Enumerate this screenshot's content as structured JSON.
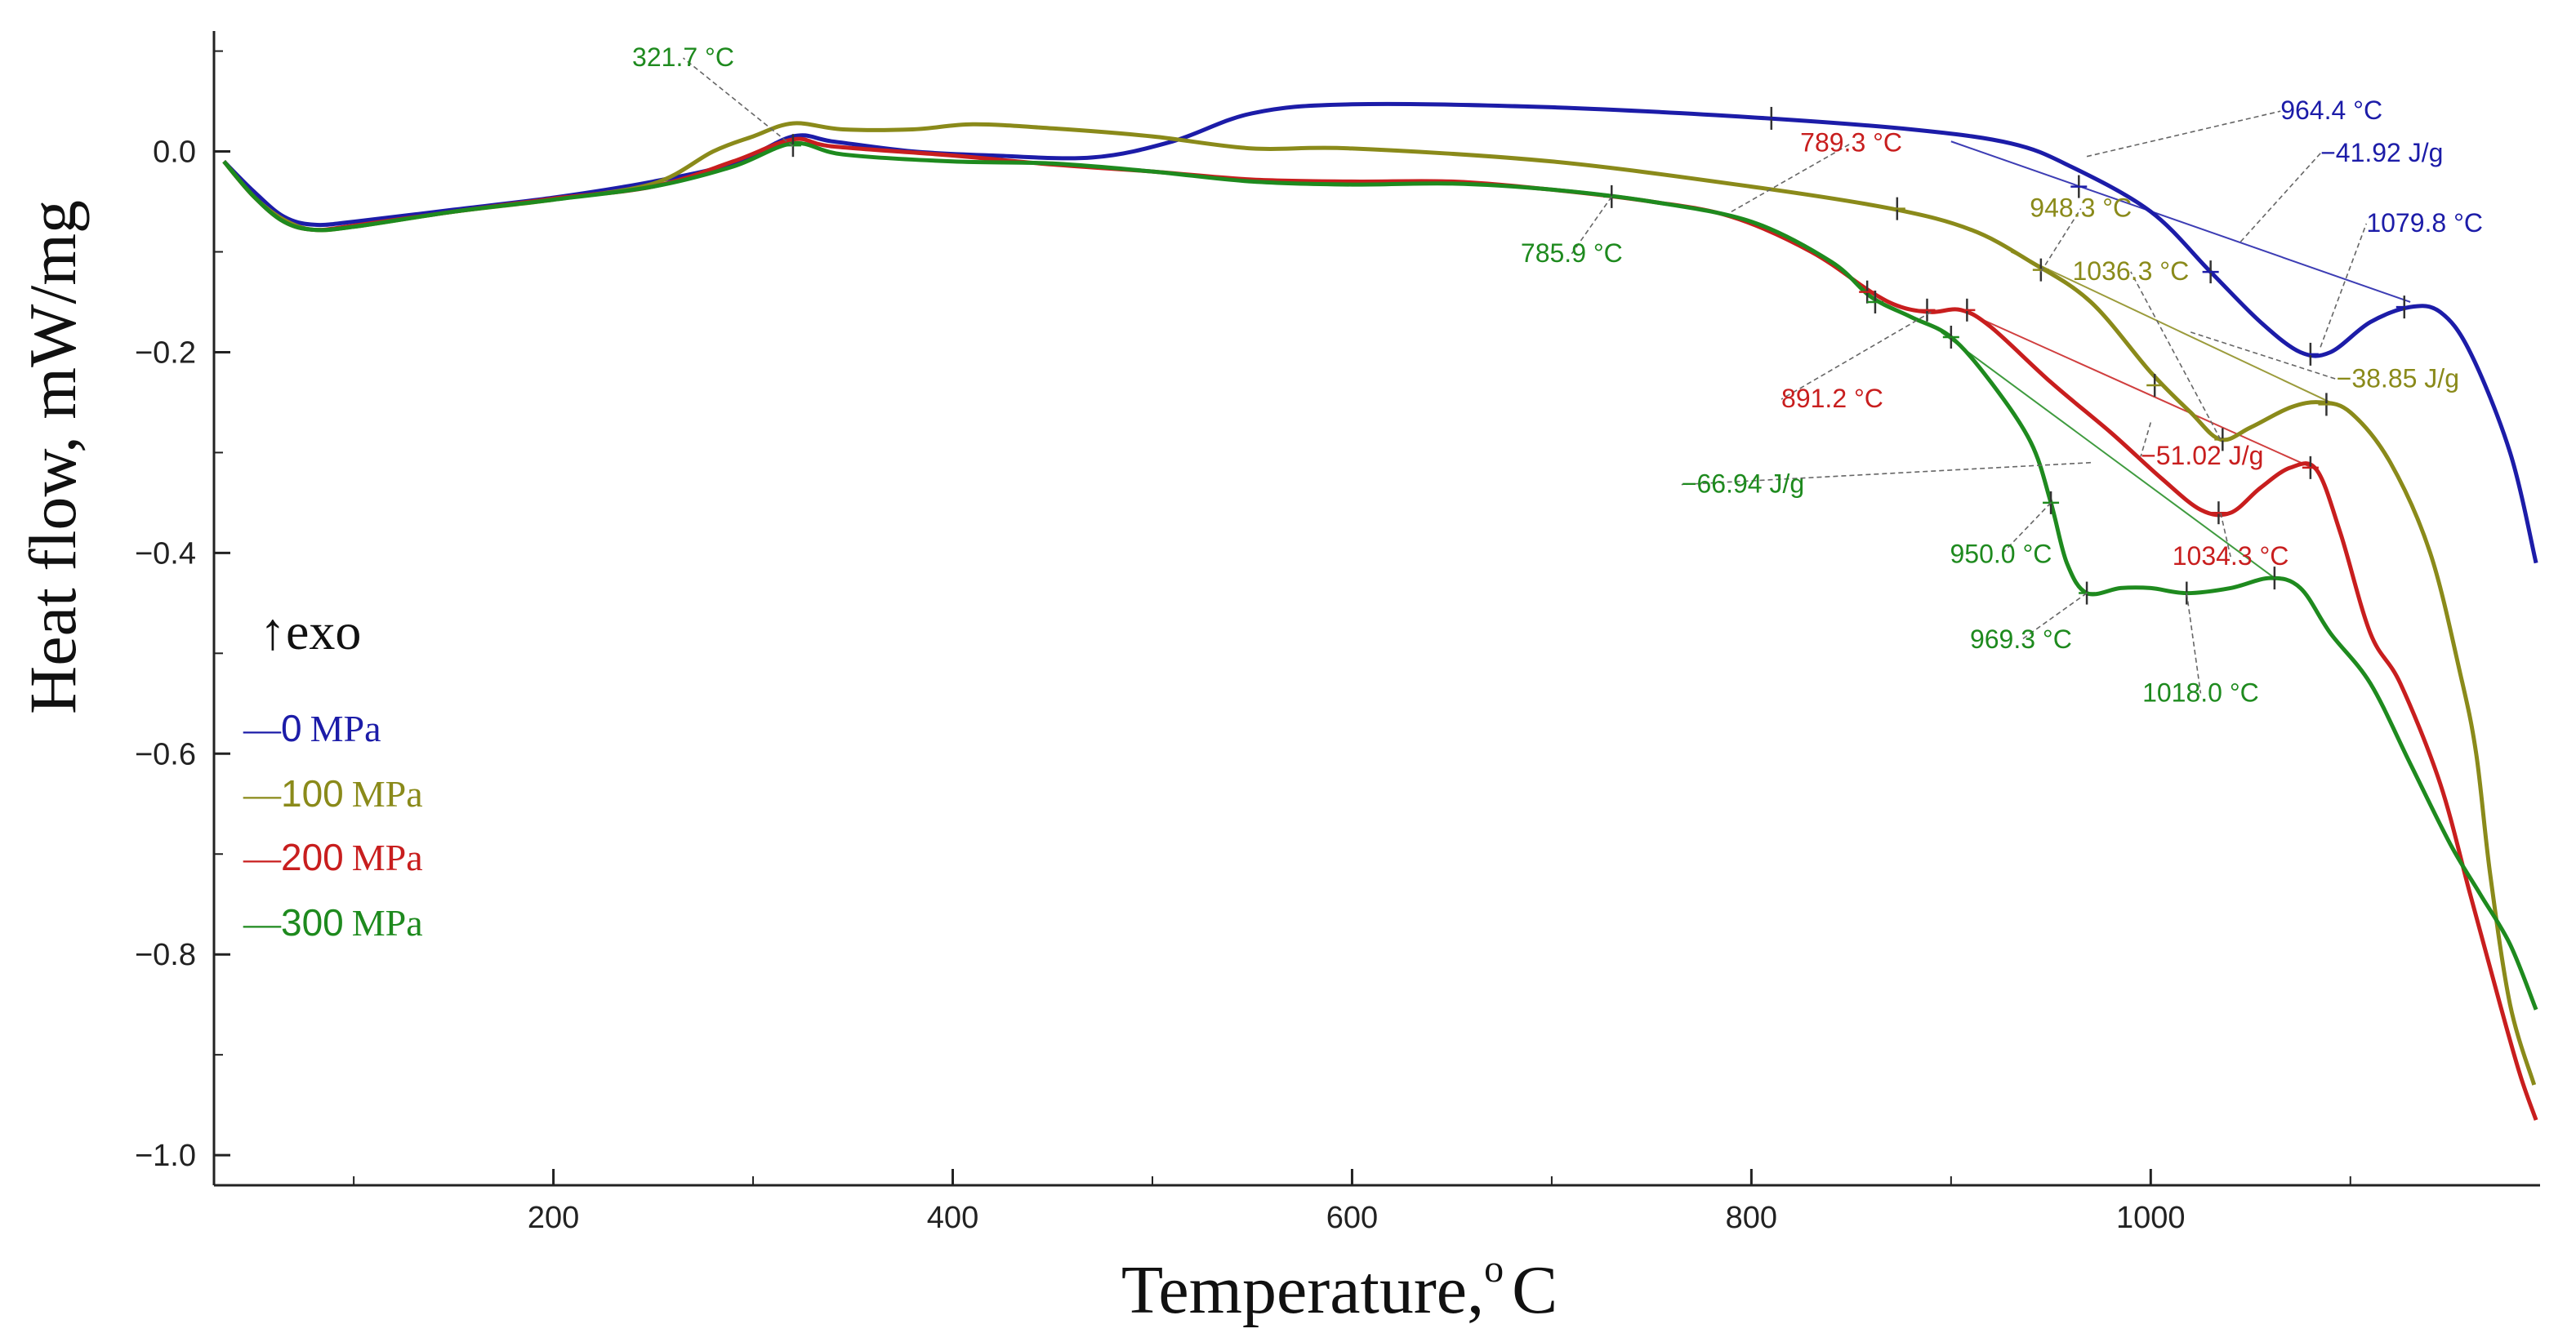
{
  "chart_data": {
    "type": "line",
    "title": "",
    "xlabel": "Temperature,",
    "xlabel_degree": "o",
    "xlabel_unit": "C",
    "ylabel": "Heat flow, mW/mg",
    "xlim": [
      30,
      1195
    ],
    "ylim": [
      -1.03,
      0.12
    ],
    "x_ticks": [
      200,
      400,
      600,
      800,
      1000
    ],
    "x_tick_labels": [
      "200",
      "400",
      "600",
      "800",
      "1000"
    ],
    "y_ticks": [
      0.0,
      -0.2,
      -0.4,
      -0.6,
      -0.8,
      -1.0
    ],
    "y_tick_labels": [
      "0.0",
      "−0.2",
      "−0.4",
      "−0.6",
      "−0.8",
      "−1.0"
    ],
    "exo_label": "↑exo",
    "legend": [
      {
        "name": "0 MPa",
        "dash": "—",
        "num": "0",
        "unit": "MPa",
        "color": "#1c1ca8"
      },
      {
        "name": "100 MPa",
        "dash": "—",
        "num": "100",
        "unit": "MPa",
        "color": "#8a8a1a"
      },
      {
        "name": "200 MPa",
        "dash": "—",
        "num": "200",
        "unit": "MPa",
        "color": "#c81e1e"
      },
      {
        "name": "300 MPa",
        "dash": "—",
        "num": "300",
        "unit": "MPa",
        "color": "#1e8a1e"
      }
    ],
    "series": [
      {
        "name": "0 MPa",
        "color": "#1c1ca8",
        "points": [
          [
            35,
            -0.01
          ],
          [
            50,
            -0.04
          ],
          [
            65,
            -0.065
          ],
          [
            80,
            -0.073
          ],
          [
            100,
            -0.07
          ],
          [
            150,
            -0.058
          ],
          [
            200,
            -0.046
          ],
          [
            250,
            -0.03
          ],
          [
            290,
            -0.012
          ],
          [
            320,
            0.015
          ],
          [
            340,
            0.01
          ],
          [
            380,
            0.0
          ],
          [
            420,
            -0.004
          ],
          [
            470,
            -0.006
          ],
          [
            510,
            0.01
          ],
          [
            550,
            0.038
          ],
          [
            600,
            0.047
          ],
          [
            700,
            0.044
          ],
          [
            800,
            0.034
          ],
          [
            880,
            0.022
          ],
          [
            930,
            0.008
          ],
          [
            960,
            -0.015
          ],
          [
            1000,
            -0.06
          ],
          [
            1030,
            -0.12
          ],
          [
            1055,
            -0.17
          ],
          [
            1075,
            -0.2
          ],
          [
            1090,
            -0.2
          ],
          [
            1110,
            -0.17
          ],
          [
            1130,
            -0.155
          ],
          [
            1145,
            -0.16
          ],
          [
            1160,
            -0.2
          ],
          [
            1180,
            -0.3
          ],
          [
            1193,
            -0.41
          ]
        ]
      },
      {
        "name": "100 MPa",
        "color": "#8a8a1a",
        "points": [
          [
            35,
            -0.01
          ],
          [
            50,
            -0.045
          ],
          [
            65,
            -0.068
          ],
          [
            80,
            -0.078
          ],
          [
            100,
            -0.075
          ],
          [
            150,
            -0.06
          ],
          [
            200,
            -0.048
          ],
          [
            250,
            -0.032
          ],
          [
            280,
            0.0
          ],
          [
            300,
            0.015
          ],
          [
            320,
            0.028
          ],
          [
            345,
            0.022
          ],
          [
            380,
            0.022
          ],
          [
            410,
            0.027
          ],
          [
            450,
            0.023
          ],
          [
            500,
            0.015
          ],
          [
            550,
            0.003
          ],
          [
            600,
            0.003
          ],
          [
            700,
            -0.01
          ],
          [
            800,
            -0.035
          ],
          [
            870,
            -0.057
          ],
          [
            910,
            -0.078
          ],
          [
            940,
            -0.11
          ],
          [
            970,
            -0.15
          ],
          [
            1000,
            -0.22
          ],
          [
            1020,
            -0.26
          ],
          [
            1035,
            -0.287
          ],
          [
            1050,
            -0.275
          ],
          [
            1070,
            -0.255
          ],
          [
            1085,
            -0.25
          ],
          [
            1100,
            -0.26
          ],
          [
            1120,
            -0.31
          ],
          [
            1140,
            -0.4
          ],
          [
            1155,
            -0.52
          ],
          [
            1163,
            -0.6
          ],
          [
            1170,
            -0.72
          ],
          [
            1180,
            -0.85
          ],
          [
            1192,
            -0.93
          ]
        ]
      },
      {
        "name": "200 MPa",
        "color": "#c81e1e",
        "points": [
          [
            35,
            -0.01
          ],
          [
            50,
            -0.045
          ],
          [
            65,
            -0.07
          ],
          [
            80,
            -0.078
          ],
          [
            100,
            -0.074
          ],
          [
            150,
            -0.06
          ],
          [
            200,
            -0.047
          ],
          [
            250,
            -0.035
          ],
          [
            290,
            -0.01
          ],
          [
            320,
            0.012
          ],
          [
            340,
            0.005
          ],
          [
            400,
            -0.004
          ],
          [
            450,
            -0.013
          ],
          [
            500,
            -0.02
          ],
          [
            550,
            -0.028
          ],
          [
            600,
            -0.03
          ],
          [
            650,
            -0.03
          ],
          [
            700,
            -0.038
          ],
          [
            750,
            -0.05
          ],
          [
            790,
            -0.065
          ],
          [
            830,
            -0.1
          ],
          [
            860,
            -0.14
          ],
          [
            875,
            -0.155
          ],
          [
            890,
            -0.16
          ],
          [
            905,
            -0.158
          ],
          [
            920,
            -0.175
          ],
          [
            950,
            -0.23
          ],
          [
            980,
            -0.28
          ],
          [
            1005,
            -0.325
          ],
          [
            1025,
            -0.357
          ],
          [
            1040,
            -0.36
          ],
          [
            1055,
            -0.335
          ],
          [
            1070,
            -0.315
          ],
          [
            1083,
            -0.317
          ],
          [
            1095,
            -0.38
          ],
          [
            1110,
            -0.48
          ],
          [
            1125,
            -0.53
          ],
          [
            1145,
            -0.63
          ],
          [
            1160,
            -0.74
          ],
          [
            1175,
            -0.85
          ],
          [
            1185,
            -0.92
          ],
          [
            1193,
            -0.965
          ]
        ]
      },
      {
        "name": "300 MPa",
        "color": "#1e8a1e",
        "points": [
          [
            35,
            -0.01
          ],
          [
            50,
            -0.045
          ],
          [
            65,
            -0.07
          ],
          [
            80,
            -0.078
          ],
          [
            100,
            -0.075
          ],
          [
            150,
            -0.06
          ],
          [
            200,
            -0.048
          ],
          [
            250,
            -0.035
          ],
          [
            290,
            -0.015
          ],
          [
            320,
            0.008
          ],
          [
            345,
            -0.003
          ],
          [
            400,
            -0.01
          ],
          [
            450,
            -0.012
          ],
          [
            500,
            -0.02
          ],
          [
            550,
            -0.03
          ],
          [
            600,
            -0.033
          ],
          [
            650,
            -0.032
          ],
          [
            700,
            -0.038
          ],
          [
            750,
            -0.05
          ],
          [
            800,
            -0.07
          ],
          [
            840,
            -0.11
          ],
          [
            860,
            -0.145
          ],
          [
            880,
            -0.165
          ],
          [
            900,
            -0.185
          ],
          [
            920,
            -0.23
          ],
          [
            940,
            -0.29
          ],
          [
            950,
            -0.35
          ],
          [
            958,
            -0.41
          ],
          [
            968,
            -0.44
          ],
          [
            985,
            -0.435
          ],
          [
            1000,
            -0.435
          ],
          [
            1018,
            -0.44
          ],
          [
            1040,
            -0.435
          ],
          [
            1060,
            -0.425
          ],
          [
            1075,
            -0.435
          ],
          [
            1090,
            -0.48
          ],
          [
            1110,
            -0.53
          ],
          [
            1130,
            -0.61
          ],
          [
            1150,
            -0.69
          ],
          [
            1165,
            -0.74
          ],
          [
            1180,
            -0.79
          ],
          [
            1193,
            -0.855
          ]
        ]
      }
    ],
    "annotations": [
      {
        "text": "321.7 °C",
        "color": "#1e8a1e",
        "at": [
          320,
          0.005
        ],
        "label_at": [
          265,
          0.085
        ],
        "anchor": "middle"
      },
      {
        "text": "964.4 °C",
        "color": "#1c1ca8",
        "at": [
          968,
          -0.005
        ],
        "label_at": [
          1065,
          0.032
        ],
        "anchor": "start"
      },
      {
        "text": "−41.92 J/g",
        "color": "#1c1ca8",
        "at": [
          1045,
          -0.09
        ],
        "label_at": [
          1085,
          -0.01
        ],
        "anchor": "start"
      },
      {
        "text": "1079.8 °C",
        "color": "#1c1ca8",
        "at": [
          1085,
          -0.195
        ],
        "label_at": [
          1108,
          -0.08
        ],
        "anchor": "start"
      },
      {
        "text": "789.3 °C",
        "color": "#c81e1e",
        "at": [
          790,
          -0.06
        ],
        "label_at": [
          850,
          0.0
        ],
        "anchor": "middle"
      },
      {
        "text": "785.9 °C",
        "color": "#1e8a1e",
        "at": [
          730,
          -0.045
        ],
        "label_at": [
          710,
          -0.11
        ],
        "anchor": "middle"
      },
      {
        "text": "948.3 °C",
        "color": "#8a8a1a",
        "at": [
          945,
          -0.12
        ],
        "label_at": [
          965,
          -0.065
        ],
        "anchor": "middle"
      },
      {
        "text": "1036.3 °C",
        "color": "#8a8a1a",
        "at": [
          1035,
          -0.287
        ],
        "label_at": [
          990,
          -0.128
        ],
        "anchor": "middle"
      },
      {
        "text": "−38.85 J/g",
        "color": "#8a8a1a",
        "at": [
          1020,
          -0.18
        ],
        "label_at": [
          1093,
          -0.235
        ],
        "anchor": "start"
      },
      {
        "text": "891.2 °C",
        "color": "#c81e1e",
        "at": [
          890,
          -0.16
        ],
        "label_at": [
          815,
          -0.255
        ],
        "anchor": "start"
      },
      {
        "text": "−51.02 J/g",
        "color": "#c81e1e",
        "at": [
          1000,
          -0.27
        ],
        "label_at": [
          995,
          -0.312
        ],
        "anchor": "start"
      },
      {
        "text": "−66.94 J/g",
        "color": "#1e8a1e",
        "at": [
          970,
          -0.31
        ],
        "label_at": [
          765,
          -0.34
        ],
        "anchor": "start"
      },
      {
        "text": "950.0 °C",
        "color": "#1e8a1e",
        "at": [
          950,
          -0.35
        ],
        "label_at": [
          925,
          -0.41
        ],
        "anchor": "middle"
      },
      {
        "text": "1034.3 °C",
        "color": "#c81e1e",
        "at": [
          1035,
          -0.36
        ],
        "label_at": [
          1040,
          -0.412
        ],
        "anchor": "middle"
      },
      {
        "text": "969.3 °C",
        "color": "#1e8a1e",
        "at": [
          968,
          -0.44
        ],
        "label_at": [
          935,
          -0.495
        ],
        "anchor": "middle"
      },
      {
        "text": "1018.0 °C",
        "color": "#1e8a1e",
        "at": [
          1018,
          -0.44
        ],
        "label_at": [
          1025,
          -0.548
        ],
        "anchor": "middle"
      }
    ],
    "markers": [
      {
        "series": "0 MPa",
        "x": 810,
        "y": 0.033
      },
      {
        "series": "0 MPa",
        "x": 964,
        "y": -0.035
      },
      {
        "series": "0 MPa",
        "x": 1030,
        "y": -0.12
      },
      {
        "series": "0 MPa",
        "x": 1080,
        "y": -0.202
      },
      {
        "series": "0 MPa",
        "x": 1127,
        "y": -0.155
      },
      {
        "series": "100 MPa",
        "x": 873,
        "y": -0.057
      },
      {
        "series": "100 MPa",
        "x": 945,
        "y": -0.118
      },
      {
        "series": "100 MPa",
        "x": 1002,
        "y": -0.233
      },
      {
        "series": "100 MPa",
        "x": 1036,
        "y": -0.287
      },
      {
        "series": "100 MPa",
        "x": 1088,
        "y": -0.252
      },
      {
        "series": "200 MPa",
        "x": 858,
        "y": -0.14
      },
      {
        "series": "200 MPa",
        "x": 888,
        "y": -0.158
      },
      {
        "series": "200 MPa",
        "x": 908,
        "y": -0.158
      },
      {
        "series": "200 MPa",
        "x": 1034,
        "y": -0.36
      },
      {
        "series": "200 MPa",
        "x": 1080,
        "y": -0.315
      },
      {
        "series": "300 MPa",
        "x": 320,
        "y": 0.006
      },
      {
        "series": "300 MPa",
        "x": 730,
        "y": -0.045
      },
      {
        "series": "300 MPa",
        "x": 862,
        "y": -0.15
      },
      {
        "series": "300 MPa",
        "x": 900,
        "y": -0.185
      },
      {
        "series": "300 MPa",
        "x": 950,
        "y": -0.35
      },
      {
        "series": "300 MPa",
        "x": 968,
        "y": -0.44
      },
      {
        "series": "300 MPa",
        "x": 1018,
        "y": -0.44
      },
      {
        "series": "300 MPa",
        "x": 1062,
        "y": -0.425
      }
    ],
    "tangent_lines": [
      {
        "color": "#1c1ca8",
        "from": [
          900,
          0.01
        ],
        "to": [
          1130,
          -0.15
        ]
      },
      {
        "color": "#8a8a1a",
        "from": [
          930,
          -0.1
        ],
        "to": [
          1090,
          -0.25
        ]
      },
      {
        "color": "#c81e1e",
        "from": [
          905,
          -0.158
        ],
        "to": [
          1083,
          -0.317
        ]
      },
      {
        "color": "#1e8a1e",
        "from": [
          895,
          -0.18
        ],
        "to": [
          1062,
          -0.425
        ]
      }
    ]
  }
}
